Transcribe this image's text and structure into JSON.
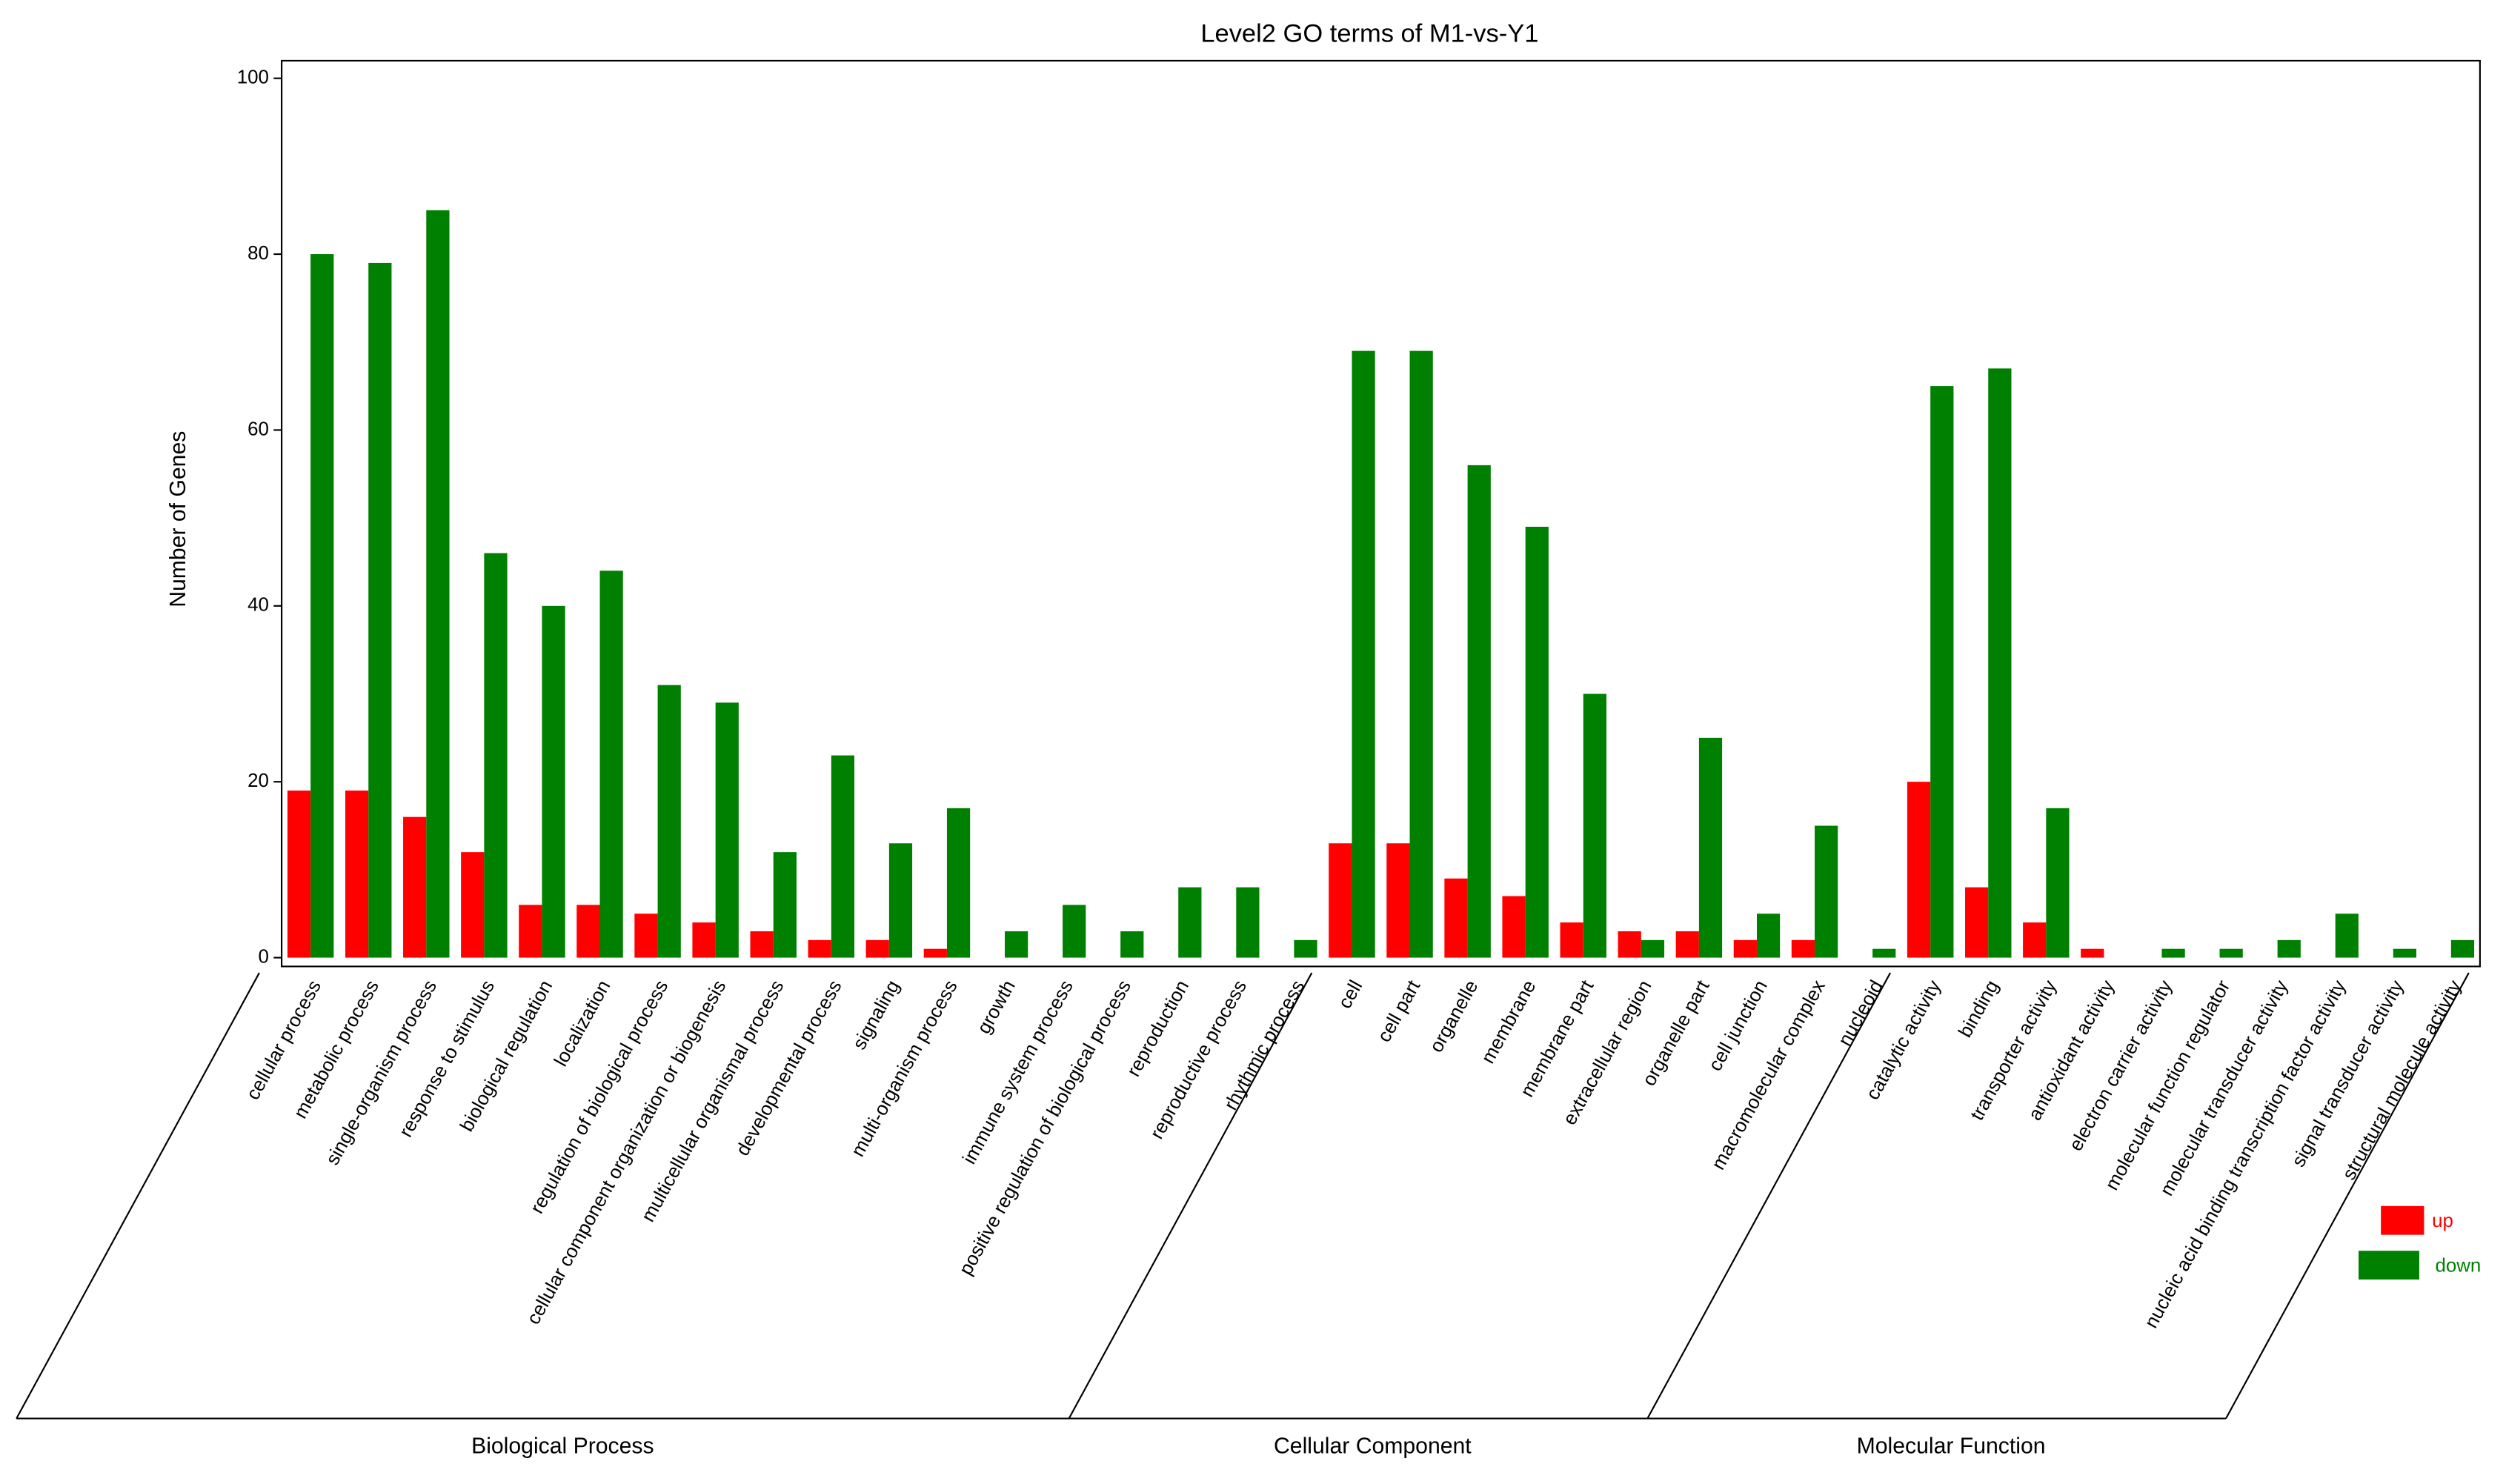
{
  "chart_data": {
    "type": "bar",
    "title": "Level2 GO terms of M1-vs-Y1",
    "y_label": "Number of Genes",
    "groups": [
      {
        "name": "Biological Process",
        "categories": [
          "cellular process",
          "metabolic process",
          "single-organism process",
          "response to stimulus",
          "biological regulation",
          "localization",
          "regulation of biological process",
          "cellular component organization or biogenesis",
          "multicellular organismal process",
          "developmental process",
          "signaling",
          "multi-organism process",
          "growth",
          "immune system process",
          "positive regulation of biological process",
          "reproduction",
          "reproductive process",
          "rhythmic process"
        ]
      },
      {
        "name": "Cellular Component",
        "categories": [
          "cell",
          "cell part",
          "organelle",
          "membrane",
          "membrane part",
          "extracellular region",
          "organelle part",
          "cell junction",
          "macromolecular complex",
          "nucleoid"
        ]
      },
      {
        "name": "Molecular Function",
        "categories": [
          "catalytic activity",
          "binding",
          "transporter activity",
          "antioxidant activity",
          "electron carrier activity",
          "molecular function regulator",
          "molecular transducer activity",
          "nucleic acid binding transcription factor activity",
          "signal transducer activity",
          "structural molecule activity"
        ]
      }
    ],
    "series": [
      {
        "name": "up",
        "color": "#ff0000",
        "values": [
          19,
          19,
          16,
          12,
          6,
          6,
          5,
          4,
          3,
          2,
          2,
          1,
          0,
          0,
          0,
          0,
          0,
          0,
          13,
          13,
          9,
          7,
          4,
          3,
          3,
          2,
          2,
          0,
          20,
          8,
          4,
          1,
          0,
          0,
          0,
          0,
          0,
          0
        ]
      },
      {
        "name": "down",
        "color": "#008000",
        "values": [
          80,
          79,
          85,
          46,
          40,
          44,
          31,
          29,
          12,
          23,
          13,
          17,
          3,
          6,
          3,
          8,
          8,
          2,
          69,
          69,
          56,
          49,
          30,
          2,
          25,
          5,
          15,
          1,
          65,
          67,
          17,
          0,
          1,
          1,
          2,
          5,
          1,
          2
        ]
      }
    ],
    "ylim": [
      -1,
      102
    ],
    "yticks": [
      0,
      20,
      40,
      60,
      80,
      100
    ]
  }
}
